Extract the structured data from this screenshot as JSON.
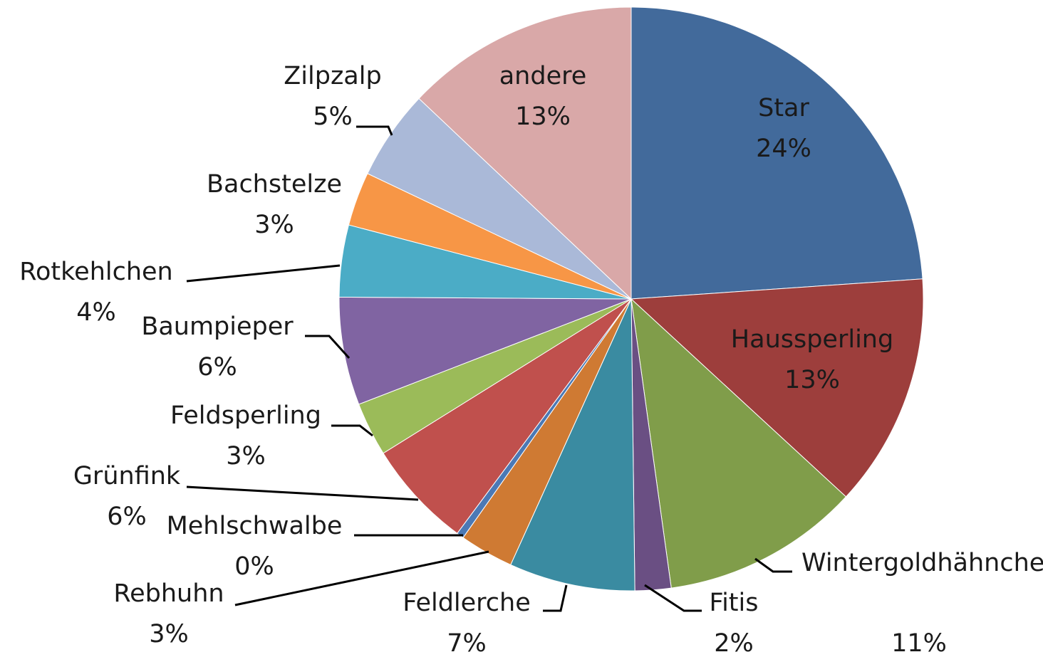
{
  "chart_data": {
    "type": "pie",
    "categories": [
      "Star",
      "Haussperling",
      "Wintergoldhähnchen",
      "Fitis",
      "Feldlerche",
      "Rebhuhn",
      "Mehlschwalbe",
      "Grünfink",
      "Feldsperling",
      "Baumpieper",
      "Rotkehlchen",
      "Bachstelze",
      "Zilpzalp",
      "andere"
    ],
    "values": [
      24,
      13,
      11,
      2,
      7,
      3,
      0.4,
      6,
      3,
      6,
      4,
      3,
      5,
      13
    ],
    "value_labels": [
      "24%",
      "13%",
      "11%",
      "2%",
      "7%",
      "3%",
      "0%",
      "6%",
      "3%",
      "6%",
      "4%",
      "3%",
      "5%",
      "13%"
    ],
    "colors": [
      "#426a9b",
      "#9d3e3c",
      "#809d4a",
      "#6a4f83",
      "#3a8ba1",
      "#cf7a33",
      "#4b79b5",
      "#c0504d",
      "#9bbb59",
      "#8064a2",
      "#4bacc6",
      "#f79646",
      "#aab9d8",
      "#d9a8a8"
    ]
  }
}
